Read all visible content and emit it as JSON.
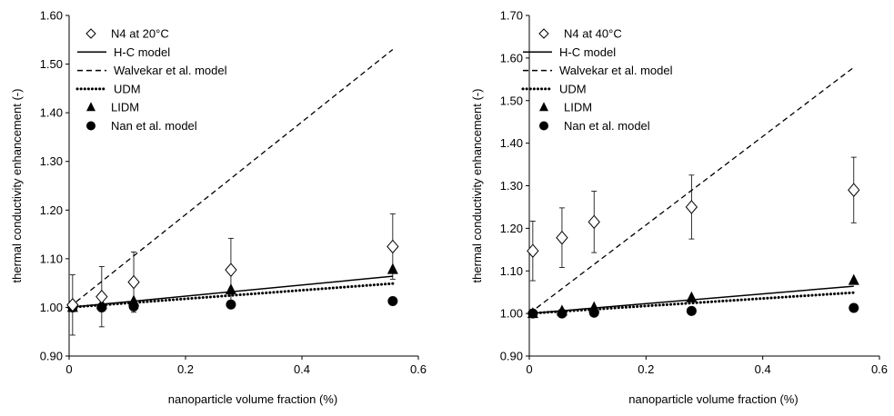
{
  "chart_data": [
    {
      "type": "scatter",
      "xlabel": "nanoparticle volume fraction (%)",
      "ylabel": "thermal conductivity enhancement (-)",
      "xlim": [
        0,
        0.6
      ],
      "ylim": [
        0.9,
        1.6
      ],
      "xticks": [
        0,
        0.2,
        0.4,
        0.6
      ],
      "xtick_labels": [
        "0",
        "0.2",
        "0.4",
        "0.6"
      ],
      "yticks": [
        0.9,
        1.0,
        1.1,
        1.2,
        1.3,
        1.4,
        1.5,
        1.6
      ],
      "ytick_labels": [
        "0.90",
        "1.00",
        "1.10",
        "1.20",
        "1.30",
        "1.40",
        "1.50",
        "1.60"
      ],
      "grid": false,
      "legend_position": "top-left",
      "legend": [
        {
          "label": "N4 at 20°C",
          "marker": "diamond-open"
        },
        {
          "label": "H-C model",
          "style": "solid"
        },
        {
          "label": "Walvekar et al. model",
          "style": "dashed"
        },
        {
          "label": "UDM",
          "style": "dotted"
        },
        {
          "label": "LIDM",
          "marker": "triangle"
        },
        {
          "label": "Nan et al. model",
          "marker": "circle"
        }
      ],
      "experimental": {
        "x": [
          0.006,
          0.056,
          0.111,
          0.278,
          0.556
        ],
        "y": [
          1.005,
          1.022,
          1.052,
          1.077,
          1.125
        ],
        "err": [
          0.062,
          0.062,
          0.062,
          0.065,
          0.067
        ]
      },
      "hc_model": {
        "x": [
          0,
          0.556
        ],
        "y": [
          1.0,
          1.064
        ]
      },
      "walvekar_model": {
        "x": [
          0,
          0.556
        ],
        "y": [
          1.0,
          1.53
        ]
      },
      "udm": {
        "x": [
          0,
          0.556
        ],
        "y": [
          1.0,
          1.049
        ]
      },
      "lidm": {
        "x": [
          0.006,
          0.056,
          0.111,
          0.278,
          0.556
        ],
        "y": [
          1.0,
          1.006,
          1.013,
          1.036,
          1.078
        ]
      },
      "nan_model": {
        "x": [
          0.006,
          0.056,
          0.111,
          0.278,
          0.556
        ],
        "y": [
          1.0,
          1.0,
          1.002,
          1.006,
          1.013
        ]
      }
    },
    {
      "type": "scatter",
      "xlabel": "nanoparticle volume fraction (%)",
      "ylabel": "thermal conductivity enhancement (-)",
      "xlim": [
        0,
        0.6
      ],
      "ylim": [
        0.9,
        1.7
      ],
      "xticks": [
        0,
        0.2,
        0.4,
        0.6
      ],
      "xtick_labels": [
        "0",
        "0.2",
        "0.4",
        "0.6"
      ],
      "yticks": [
        0.9,
        1.0,
        1.1,
        1.2,
        1.3,
        1.4,
        1.5,
        1.6,
        1.7
      ],
      "ytick_labels": [
        "0.90",
        "1.00",
        "1.10",
        "1.20",
        "1.30",
        "1.40",
        "1.50",
        "1.60",
        "1.70"
      ],
      "grid": false,
      "legend_position": "top-left",
      "legend": [
        {
          "label": "N4 at 40°C",
          "marker": "diamond-open"
        },
        {
          "label": "H-C model",
          "style": "solid"
        },
        {
          "label": "Walvekar et al. model",
          "style": "dashed"
        },
        {
          "label": "UDM",
          "style": "dotted"
        },
        {
          "label": "LIDM",
          "marker": "triangle"
        },
        {
          "label": "Nan et al. model",
          "marker": "circle"
        }
      ],
      "experimental": {
        "x": [
          0.006,
          0.056,
          0.111,
          0.278,
          0.556
        ],
        "y": [
          1.147,
          1.178,
          1.215,
          1.25,
          1.29
        ],
        "err": [
          0.07,
          0.07,
          0.072,
          0.075,
          0.077
        ]
      },
      "hc_model": {
        "x": [
          0,
          0.556
        ],
        "y": [
          1.0,
          1.064
        ]
      },
      "walvekar_model": {
        "x": [
          0,
          0.556
        ],
        "y": [
          1.0,
          1.578
        ]
      },
      "udm": {
        "x": [
          0,
          0.556
        ],
        "y": [
          1.0,
          1.049
        ]
      },
      "lidm": {
        "x": [
          0.006,
          0.056,
          0.111,
          0.278,
          0.556
        ],
        "y": [
          1.0,
          1.006,
          1.014,
          1.037,
          1.078
        ]
      },
      "nan_model": {
        "x": [
          0.006,
          0.056,
          0.111,
          0.278,
          0.556
        ],
        "y": [
          1.0,
          1.0,
          1.002,
          1.006,
          1.013
        ]
      }
    }
  ]
}
